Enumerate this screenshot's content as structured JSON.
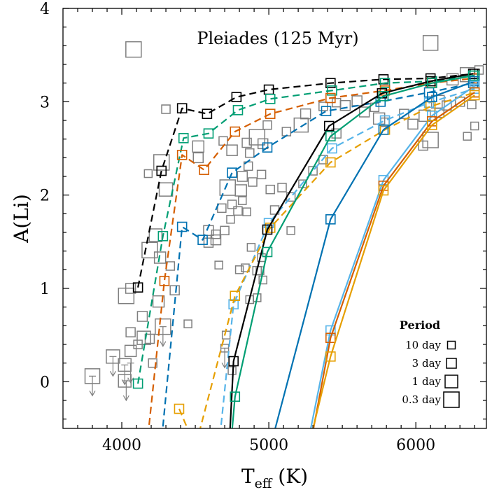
{
  "chart_data": {
    "type": "line",
    "title": "Pleiades (125 Myr)",
    "xlabel_main": "T",
    "xlabel_sub": "eff",
    "xlabel_unit": " (K)",
    "ylabel": "A(Li)",
    "xlim": [
      3600,
      6480
    ],
    "ylim": [
      -0.5,
      4.0
    ],
    "x_ticks": [
      4000,
      5000,
      6000
    ],
    "y_ticks": [
      0,
      1,
      2,
      3,
      4
    ],
    "legend": {
      "title": "Period",
      "position": "lower-right",
      "entries": [
        {
          "label": "10 day",
          "marker_size": 11
        },
        {
          "label": "3 day",
          "marker_size": 14
        },
        {
          "label": "1 day",
          "marker_size": 18
        },
        {
          "label": "0.3 day",
          "marker_size": 22
        }
      ]
    },
    "colors": {
      "observed": "#7f7f7f",
      "black": "#000000",
      "green": "#009e73",
      "vermillion": "#d55e00",
      "blue": "#0072b2",
      "skyblue": "#56b4e9",
      "orange": "#e69f00"
    },
    "series": [
      {
        "color": "black",
        "dash": true,
        "points": [
          [
            4110,
            1.01
          ],
          [
            4270,
            2.26
          ],
          [
            4410,
            2.93
          ],
          [
            4580,
            2.87
          ],
          [
            4780,
            3.05
          ],
          [
            5000,
            3.13
          ],
          [
            5420,
            3.2
          ],
          [
            5780,
            3.24
          ],
          [
            6100,
            3.25
          ],
          [
            6400,
            3.3
          ]
        ]
      },
      {
        "color": "green",
        "dash": true,
        "points": [
          [
            4110,
            -0.02
          ],
          [
            4280,
            1.56
          ],
          [
            4420,
            2.61
          ],
          [
            4590,
            2.66
          ],
          [
            4790,
            2.91
          ],
          [
            5010,
            3.03
          ],
          [
            5430,
            3.12
          ],
          [
            5790,
            3.2
          ],
          [
            6110,
            3.22
          ],
          [
            6400,
            3.28
          ]
        ]
      },
      {
        "color": "vermillion",
        "dash": true,
        "points": [
          [
            4170,
            -0.7
          ],
          [
            4290,
            1.08
          ],
          [
            4410,
            2.43
          ],
          [
            4560,
            2.27
          ],
          [
            4770,
            2.68
          ],
          [
            5010,
            2.87
          ],
          [
            5420,
            3.04
          ],
          [
            5790,
            3.12
          ],
          [
            6100,
            3.2
          ],
          [
            6390,
            3.25
          ]
        ]
      },
      {
        "color": "blue",
        "dash": true,
        "points": [
          [
            4280,
            -0.48
          ],
          [
            4410,
            1.66
          ],
          [
            4550,
            1.52
          ],
          [
            4750,
            2.24
          ],
          [
            4990,
            2.51
          ],
          [
            5390,
            2.9
          ],
          [
            5760,
            3.0
          ],
          [
            6090,
            3.1
          ],
          [
            6390,
            3.2
          ]
        ]
      },
      {
        "color": "skyblue",
        "dash": true,
        "points": [
          [
            4660,
            -0.7
          ],
          [
            4760,
            0.83
          ],
          [
            5000,
            1.7
          ],
          [
            5430,
            2.5
          ],
          [
            5790,
            2.8
          ],
          [
            6090,
            2.99
          ],
          [
            6400,
            3.14
          ]
        ]
      },
      {
        "color": "orange",
        "dash": true,
        "points": [
          [
            4390,
            -0.29
          ],
          [
            4500,
            -0.7
          ],
          [
            4770,
            0.92
          ],
          [
            5010,
            1.65
          ],
          [
            5420,
            2.35
          ],
          [
            5790,
            2.7
          ],
          [
            6100,
            2.95
          ],
          [
            6400,
            3.1
          ]
        ]
      },
      {
        "color": "black",
        "dash": false,
        "points": [
          [
            4730,
            -0.7
          ],
          [
            4760,
            0.22
          ],
          [
            4990,
            1.63
          ],
          [
            5410,
            2.74
          ],
          [
            5770,
            3.09
          ],
          [
            6100,
            3.22
          ],
          [
            6390,
            3.3
          ]
        ]
      },
      {
        "color": "green",
        "dash": false,
        "points": [
          [
            4740,
            -0.7
          ],
          [
            4770,
            -0.16
          ],
          [
            4990,
            1.39
          ],
          [
            5420,
            2.63
          ],
          [
            5780,
            3.06
          ],
          [
            6110,
            3.2
          ],
          [
            6390,
            3.28
          ]
        ]
      },
      {
        "color": "blue",
        "dash": false,
        "points": [
          [
            5010,
            -0.7
          ],
          [
            5420,
            1.74
          ],
          [
            5780,
            2.7
          ],
          [
            6110,
            3.05
          ],
          [
            6400,
            3.22
          ]
        ]
      },
      {
        "color": "skyblue",
        "dash": false,
        "points": [
          [
            5260,
            -0.7
          ],
          [
            5420,
            0.55
          ],
          [
            5780,
            2.16
          ],
          [
            6110,
            2.85
          ],
          [
            6400,
            3.17
          ]
        ]
      },
      {
        "color": "vermillion",
        "dash": false,
        "points": [
          [
            5280,
            -0.7
          ],
          [
            5420,
            0.47
          ],
          [
            5780,
            2.1
          ],
          [
            6110,
            2.79
          ],
          [
            6400,
            3.1
          ]
        ]
      },
      {
        "color": "orange",
        "dash": false,
        "points": [
          [
            5270,
            -0.7
          ],
          [
            5420,
            0.27
          ],
          [
            5780,
            2.05
          ],
          [
            6110,
            2.75
          ],
          [
            6400,
            3.07
          ]
        ]
      }
    ],
    "observations": [
      [
        4080,
        3.56,
        22
      ],
      [
        6100,
        3.63,
        21
      ],
      [
        4300,
        2.92,
        12
      ],
      [
        4180,
        2.23,
        11
      ],
      [
        4270,
        2.35,
        22
      ],
      [
        4300,
        2.06,
        19
      ],
      [
        4520,
        2.52,
        16
      ],
      [
        4520,
        2.4,
        14
      ],
      [
        4690,
        2.58,
        12
      ],
      [
        4750,
        2.48,
        15
      ],
      [
        4850,
        2.56,
        13
      ],
      [
        4870,
        2.45,
        12
      ],
      [
        4920,
        2.62,
        22
      ],
      [
        4960,
        2.55,
        14
      ],
      [
        4990,
        2.75,
        12
      ],
      [
        5120,
        2.68,
        12
      ],
      [
        5220,
        2.75,
        20
      ],
      [
        5250,
        2.87,
        14
      ],
      [
        5370,
        2.95,
        12
      ],
      [
        5460,
        2.99,
        12
      ],
      [
        5520,
        2.96,
        14
      ],
      [
        5600,
        3.01,
        14
      ],
      [
        5650,
        2.89,
        14
      ],
      [
        5720,
        2.94,
        12
      ],
      [
        5750,
        2.82,
        16
      ],
      [
        5790,
        2.78,
        12
      ],
      [
        5920,
        2.87,
        13
      ],
      [
        5980,
        2.76,
        14
      ],
      [
        6060,
        2.85,
        16
      ],
      [
        6160,
        2.88,
        13
      ],
      [
        6210,
        2.96,
        13
      ],
      [
        6300,
        3.0,
        13
      ],
      [
        6380,
        2.97,
        12
      ],
      [
        6400,
        2.74,
        11
      ],
      [
        6350,
        2.63,
        11
      ],
      [
        6050,
        2.53,
        13
      ],
      [
        6100,
        2.59,
        22
      ],
      [
        6150,
        3.0,
        18
      ],
      [
        6250,
        3.24,
        16
      ],
      [
        6350,
        3.29,
        20
      ],
      [
        6430,
        3.34,
        12
      ],
      [
        4720,
        2.08,
        22
      ],
      [
        4810,
        2.05,
        16
      ],
      [
        4820,
        2.2,
        14
      ],
      [
        4860,
        2.31,
        12
      ],
      [
        4890,
        2.14,
        12
      ],
      [
        4950,
        2.22,
        12
      ],
      [
        5010,
        2.06,
        12
      ],
      [
        5090,
        2.08,
        12
      ],
      [
        5150,
        1.98,
        12
      ],
      [
        5230,
        2.12,
        11
      ],
      [
        5300,
        2.26,
        12
      ],
      [
        5370,
        2.38,
        12
      ],
      [
        5460,
        2.66,
        13
      ],
      [
        5040,
        1.84,
        12
      ],
      [
        5150,
        1.62,
        11
      ],
      [
        4590,
        1.62,
        14
      ],
      [
        4640,
        1.58,
        12
      ],
      [
        4700,
        1.62,
        12
      ],
      [
        4590,
        1.49,
        13
      ],
      [
        4640,
        1.52,
        14
      ],
      [
        4680,
        1.86,
        12
      ],
      [
        4750,
        1.9,
        12
      ],
      [
        4790,
        1.83,
        12
      ],
      [
        4880,
        1.44,
        11
      ],
      [
        4920,
        1.19,
        12
      ],
      [
        4950,
        1.33,
        11
      ],
      [
        4800,
        1.2,
        11
      ],
      [
        4840,
        1.22,
        11
      ],
      [
        4660,
        1.25,
        11
      ],
      [
        4740,
        1.74,
        11
      ],
      [
        4820,
        1.94,
        11
      ],
      [
        4850,
        1.82,
        11
      ],
      [
        4870,
        0.88,
        11
      ],
      [
        4940,
        1.19,
        11
      ],
      [
        4960,
        1.09,
        11
      ],
      [
        4920,
        0.9,
        11
      ],
      [
        4190,
        1.41,
        22
      ],
      [
        4230,
        1.57,
        18
      ],
      [
        4260,
        1.33,
        16
      ],
      [
        4330,
        1.24,
        12
      ],
      [
        4360,
        0.98,
        13
      ],
      [
        4250,
        0.86,
        16
      ],
      [
        4030,
        0.92,
        22
      ],
      [
        4060,
        1.0,
        14
      ],
      [
        4060,
        0.53,
        13
      ],
      [
        4140,
        0.7,
        14
      ],
      [
        4150,
        0.47,
        19
      ],
      [
        4280,
        0.59,
        22
      ],
      [
        4210,
        0.2,
        12
      ],
      [
        4190,
        0.46,
        13
      ],
      [
        4060,
        0.33,
        16
      ],
      [
        4020,
        0.18,
        18
      ],
      [
        3940,
        0.27,
        19
      ],
      [
        3800,
        0.06,
        21
      ],
      [
        4020,
        0.01,
        18
      ],
      [
        4110,
        0.4,
        12
      ],
      [
        4450,
        0.62,
        11
      ],
      [
        4700,
        0.36,
        11
      ],
      [
        4710,
        0.5,
        11
      ],
      [
        4750,
        0.12,
        11
      ]
    ],
    "upper_limits": [
      [
        3800,
        0.06
      ],
      [
        3940,
        0.27
      ],
      [
        4020,
        0.18
      ],
      [
        4060,
        0.2
      ],
      [
        4280,
        0.59
      ],
      [
        4700,
        0.36
      ],
      [
        4030,
        0.01
      ]
    ]
  }
}
